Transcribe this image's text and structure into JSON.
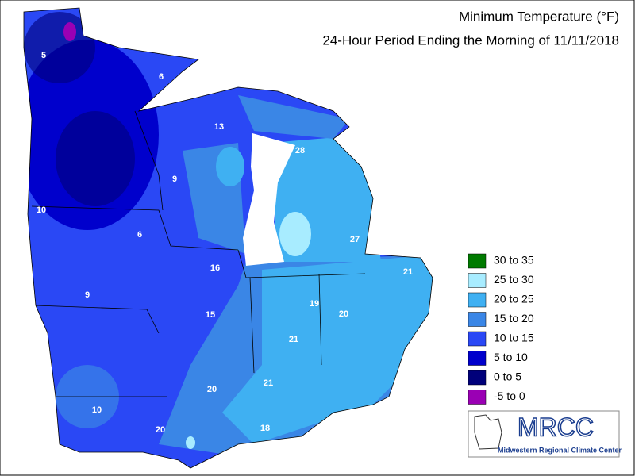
{
  "header": {
    "title": "Minimum Temperature (°F)",
    "subtitle": "24-Hour Period Ending the Morning of 11/11/2018"
  },
  "legend": {
    "items": [
      {
        "label": "30 to 35",
        "color": "#007a00"
      },
      {
        "label": "25 to 30",
        "color": "#a8ecff"
      },
      {
        "label": "20 to 25",
        "color": "#3fb0f2"
      },
      {
        "label": "15 to 20",
        "color": "#3a86e6"
      },
      {
        "label": "10 to 15",
        "color": "#2a48f5"
      },
      {
        "label": "5 to 10",
        "color": "#0000cc"
      },
      {
        "label": "0 to 5",
        "color": "#00007a"
      },
      {
        "label": "-5 to 0",
        "color": "#9a00b4"
      }
    ]
  },
  "map_labels": [
    5,
    6,
    13,
    28,
    9,
    10,
    6,
    27,
    16,
    21,
    19,
    9,
    15,
    20,
    21,
    21,
    20,
    10,
    20,
    18
  ],
  "logo": {
    "name": "MRCC",
    "subtitle": "Midwestern Regional Climate Center"
  }
}
